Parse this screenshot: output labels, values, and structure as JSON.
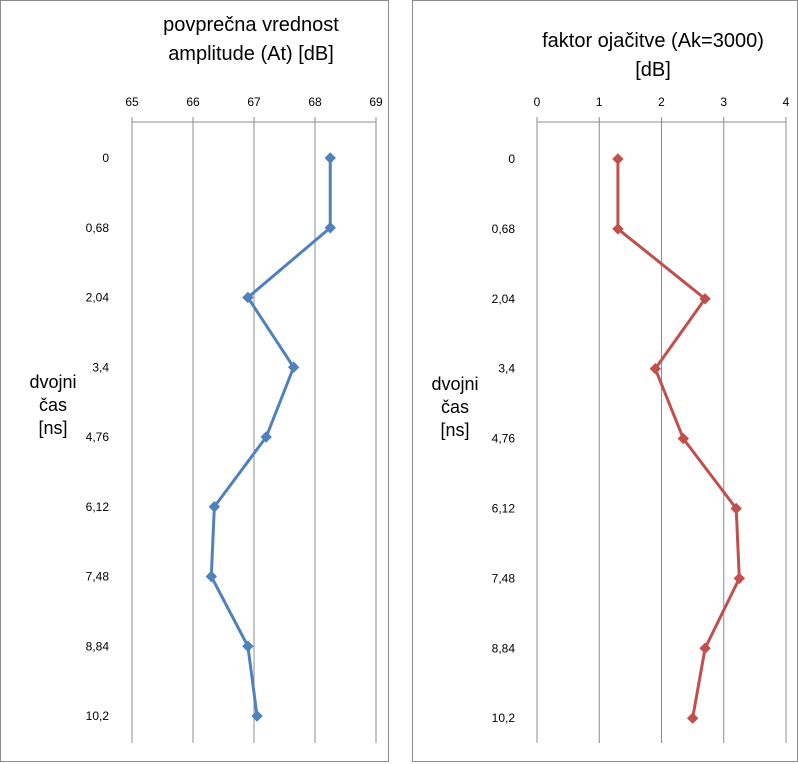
{
  "chart_data": [
    {
      "type": "line",
      "title": [
        "povprečna vrednost",
        "amplitude (At) [dB]"
      ],
      "ylabel": [
        "dvojni",
        "čas",
        "[ns]"
      ],
      "x_ticks": [
        "65",
        "66",
        "67",
        "68",
        "69"
      ],
      "xlim": [
        65,
        69
      ],
      "categories": [
        "0",
        "0,68",
        "2,04",
        "3,4",
        "4,76",
        "6,12",
        "7,48",
        "8,84",
        "10,2"
      ],
      "values": [
        68.25,
        68.25,
        66.9,
        67.65,
        67.2,
        66.35,
        66.3,
        66.9,
        67.05
      ],
      "color": "#4F81BD",
      "grid": "vertical"
    },
    {
      "type": "line",
      "title": [
        "faktor ojačitve (Ak=3000)",
        "[dB]"
      ],
      "ylabel": [
        "dvojni",
        "čas",
        "[ns]"
      ],
      "x_ticks": [
        "0",
        "1",
        "2",
        "3",
        "4"
      ],
      "xlim": [
        0,
        4
      ],
      "categories": [
        "0",
        "0,68",
        "2,04",
        "3,4",
        "4,76",
        "6,12",
        "7,48",
        "8,84",
        "10,2"
      ],
      "values": [
        1.3,
        1.3,
        2.7,
        1.9,
        2.35,
        3.2,
        3.25,
        2.7,
        2.5
      ],
      "color": "#C0504D",
      "grid": "vertical"
    }
  ]
}
